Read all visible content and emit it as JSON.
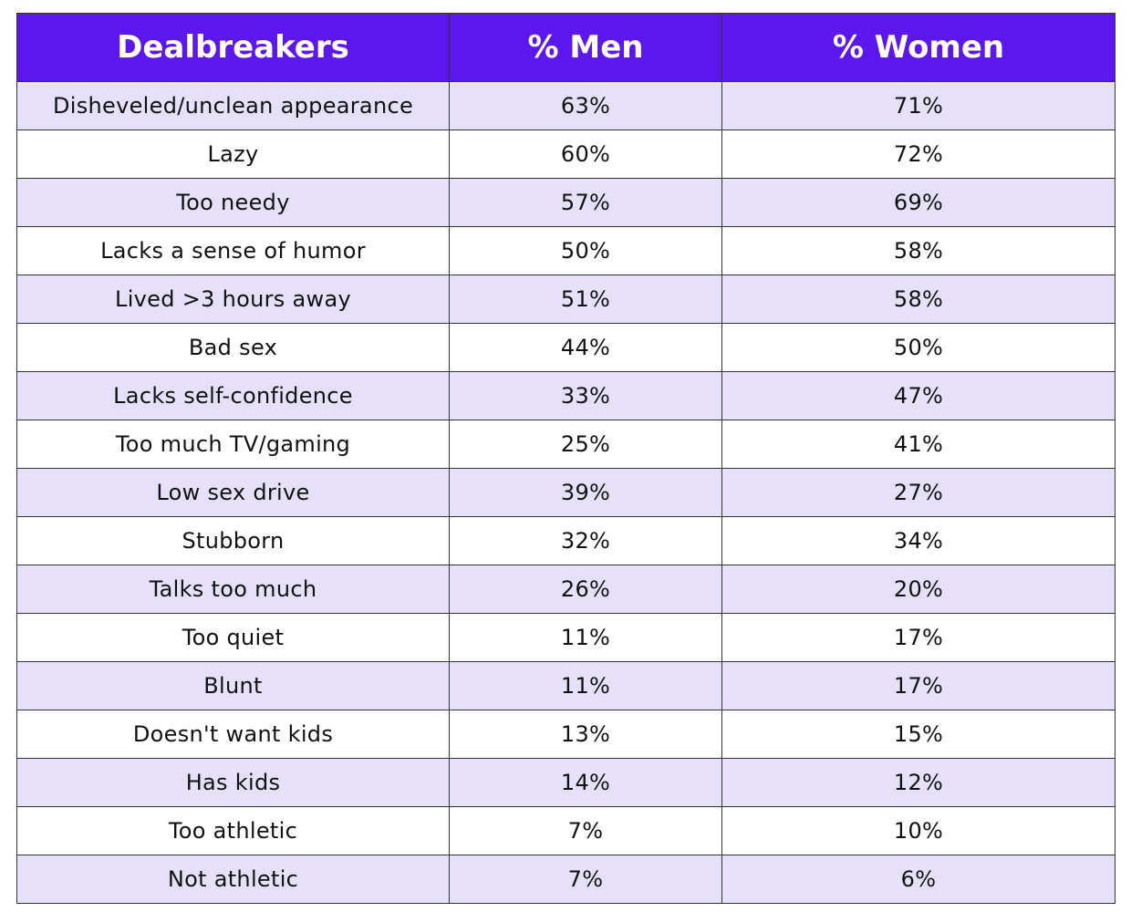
{
  "table": {
    "header": [
      "Dealbreakers",
      "% Men",
      "% Women"
    ],
    "rows": [
      [
        "Disheveled/unclean appearance",
        "63%",
        "71%"
      ],
      [
        "Lazy",
        "60%",
        "72%"
      ],
      [
        "Too needy",
        "57%",
        "69%"
      ],
      [
        "Lacks a sense of humor",
        "50%",
        "58%"
      ],
      [
        "Lived >3 hours away",
        "51%",
        "58%"
      ],
      [
        "Bad sex",
        "44%",
        "50%"
      ],
      [
        "Lacks self-confidence",
        "33%",
        "47%"
      ],
      [
        "Too much TV/gaming",
        "25%",
        "41%"
      ],
      [
        "Low sex drive",
        "39%",
        "27%"
      ],
      [
        "Stubborn",
        "32%",
        "34%"
      ],
      [
        "Talks too much",
        "26%",
        "20%"
      ],
      [
        "Too quiet",
        "11%",
        "17%"
      ],
      [
        "Blunt",
        "11%",
        "17%"
      ],
      [
        "Doesn't want kids",
        "13%",
        "15%"
      ],
      [
        "Has kids",
        "14%",
        "12%"
      ],
      [
        "Too athletic",
        "7%",
        "10%"
      ],
      [
        "Not athletic",
        "7%",
        "6%"
      ]
    ]
  }
}
